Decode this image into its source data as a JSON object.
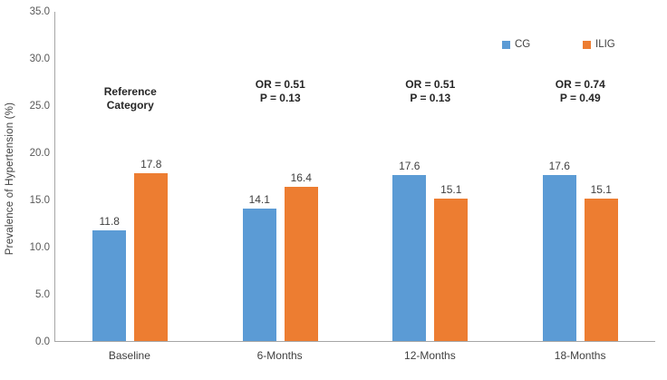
{
  "chart_data": {
    "type": "bar",
    "title": "",
    "xlabel": "",
    "ylabel": "Prevalence of Hypertension (%)",
    "ylim": [
      0,
      35
    ],
    "ytick_step": 5,
    "ytick_labels": [
      "0.0",
      "5.0",
      "10.0",
      "15.0",
      "20.0",
      "25.0",
      "30.0",
      "35.0"
    ],
    "grid": "off",
    "legend_position": "top-right",
    "categories": [
      "Baseline",
      "6-Months",
      "12-Months",
      "18-Months"
    ],
    "series": [
      {
        "name": "CG",
        "color": "#5B9BD5",
        "values": [
          11.8,
          14.1,
          17.6,
          17.6
        ]
      },
      {
        "name": "ILIG",
        "color": "#ED7D31",
        "values": [
          17.8,
          16.4,
          15.1,
          15.1
        ]
      }
    ],
    "annotations": [
      {
        "lines": [
          "Reference",
          "Category"
        ]
      },
      {
        "lines": [
          "OR = 0.51",
          "P = 0.13"
        ]
      },
      {
        "lines": [
          "OR = 0.51",
          "P = 0.13"
        ]
      },
      {
        "lines": [
          "OR = 0.74",
          "P = 0.49"
        ]
      }
    ]
  },
  "colors": {
    "cg": "#5B9BD5",
    "ilig": "#ED7D31",
    "axis_line": "#A6A6A6",
    "text": "#404040"
  }
}
